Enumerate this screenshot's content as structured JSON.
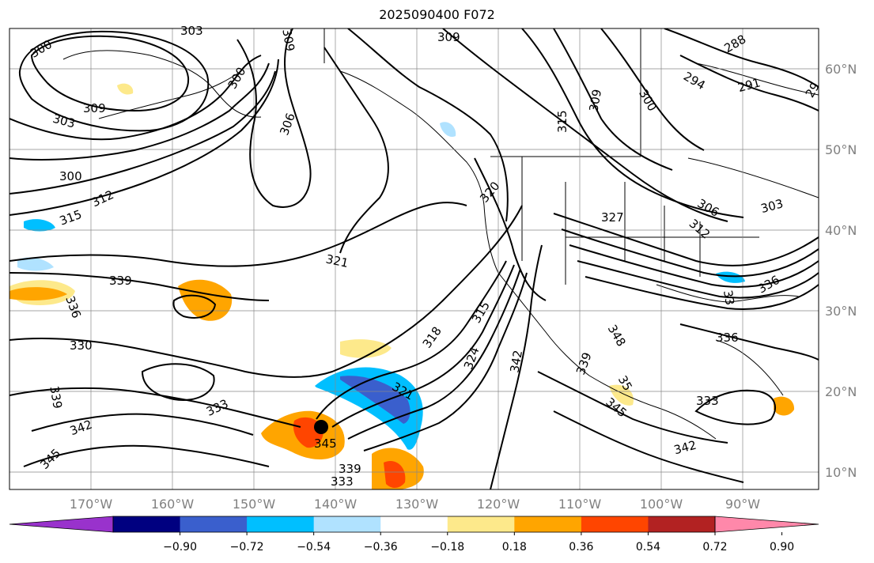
{
  "title": "2025090400 F072",
  "map": {
    "lon_ticks": [
      "170°W",
      "160°W",
      "150°W",
      "140°W",
      "130°W",
      "120°W",
      "110°W",
      "100°W",
      "90°W"
    ],
    "lat_ticks": [
      "60°N",
      "50°N",
      "40°N",
      "30°N",
      "20°N",
      "10°N"
    ],
    "contour_labels": [
      "300",
      "303",
      "309",
      "309",
      "300",
      "306",
      "309",
      "303",
      "309",
      "315",
      "309",
      "300",
      "288",
      "294",
      "291",
      "29",
      "300",
      "312",
      "315",
      "321",
      "320",
      "327",
      "306",
      "303",
      "312",
      "336",
      "339",
      "336",
      "330",
      "318",
      "315",
      "324",
      "342",
      "348",
      "339",
      "336",
      "33",
      "333",
      "321",
      "345",
      "345",
      "342",
      "339",
      "333",
      "342",
      "345",
      "339",
      "333",
      "35"
    ]
  },
  "colorbar": {
    "colors": [
      "#9932cc",
      "#000080",
      "#3a5fcd",
      "#00bfff",
      "#b0e2ff",
      "#ffffff",
      "#fde98b",
      "#ffa500",
      "#ff4500",
      "#b22222",
      "#ff88aa"
    ],
    "tick_labels": [
      "−0.90",
      "−0.72",
      "−0.54",
      "−0.36",
      "−0.18",
      "0.18",
      "0.36",
      "0.54",
      "0.72",
      "0.90"
    ]
  }
}
